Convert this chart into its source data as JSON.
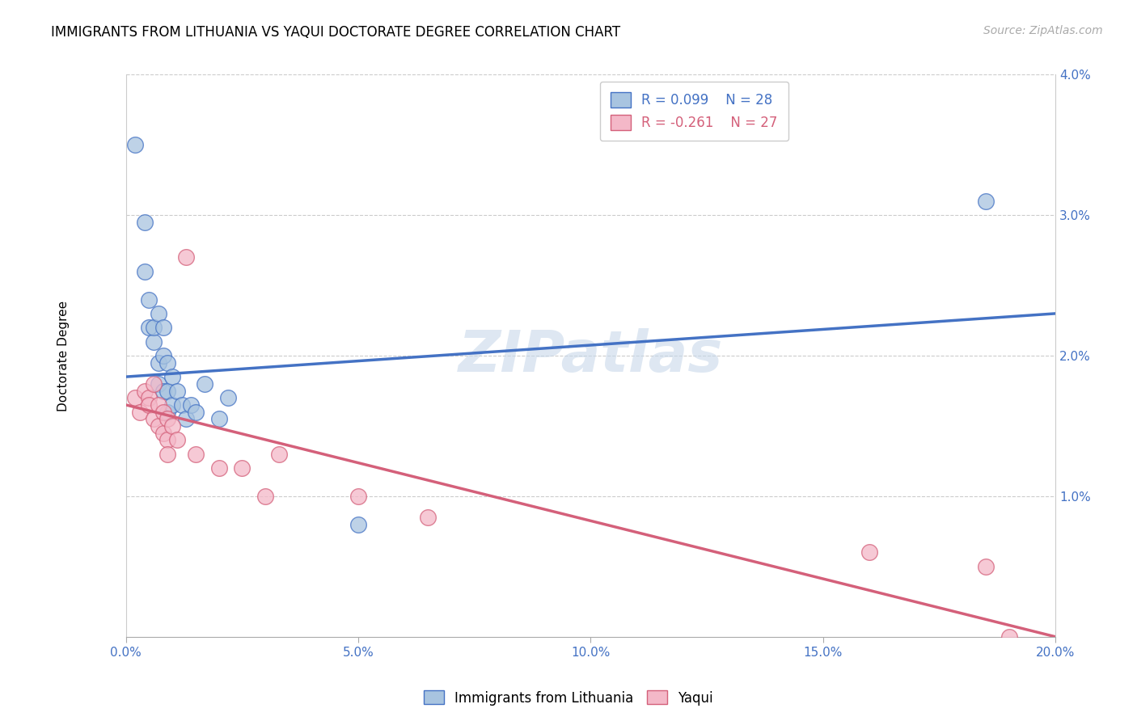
{
  "title": "IMMIGRANTS FROM LITHUANIA VS YAQUI DOCTORATE DEGREE CORRELATION CHART",
  "source_text": "Source: ZipAtlas.com",
  "ylabel": "Doctorate Degree",
  "xlim": [
    0.0,
    0.2
  ],
  "ylim": [
    0.0,
    0.04
  ],
  "xtick_labels": [
    "0.0%",
    "",
    "",
    "",
    "",
    "5.0%",
    "",
    "",
    "",
    "",
    "10.0%",
    "",
    "",
    "",
    "",
    "15.0%",
    "",
    "",
    "",
    "",
    "20.0%"
  ],
  "xtick_values": [
    0.0,
    0.01,
    0.02,
    0.03,
    0.04,
    0.05,
    0.06,
    0.07,
    0.08,
    0.09,
    0.1,
    0.11,
    0.12,
    0.13,
    0.14,
    0.15,
    0.16,
    0.17,
    0.18,
    0.19,
    0.2
  ],
  "xtick_labels_shown": [
    "0.0%",
    "5.0%",
    "10.0%",
    "15.0%",
    "20.0%"
  ],
  "xtick_values_shown": [
    0.0,
    0.05,
    0.1,
    0.15,
    0.2
  ],
  "ytick_labels": [
    "1.0%",
    "2.0%",
    "3.0%",
    "4.0%"
  ],
  "ytick_values": [
    0.01,
    0.02,
    0.03,
    0.04
  ],
  "blue_color": "#a8c4e0",
  "blue_line_color": "#4472c4",
  "pink_color": "#f4b8c8",
  "pink_line_color": "#d4607a",
  "legend_R1": "R = 0.099",
  "legend_N1": "N = 28",
  "legend_R2": "R = -0.261",
  "legend_N2": "N = 27",
  "label1": "Immigrants from Lithuania",
  "label2": "Yaqui",
  "watermark": "ZIPatlas",
  "blue_scatter_x": [
    0.002,
    0.004,
    0.004,
    0.005,
    0.005,
    0.006,
    0.006,
    0.007,
    0.007,
    0.007,
    0.008,
    0.008,
    0.008,
    0.009,
    0.009,
    0.009,
    0.01,
    0.01,
    0.011,
    0.012,
    0.013,
    0.014,
    0.015,
    0.017,
    0.02,
    0.022,
    0.05,
    0.185
  ],
  "blue_scatter_y": [
    0.035,
    0.0295,
    0.026,
    0.024,
    0.022,
    0.021,
    0.022,
    0.023,
    0.0195,
    0.018,
    0.022,
    0.02,
    0.0175,
    0.0195,
    0.0175,
    0.016,
    0.0185,
    0.0165,
    0.0175,
    0.0165,
    0.0155,
    0.0165,
    0.016,
    0.018,
    0.0155,
    0.017,
    0.008,
    0.031
  ],
  "pink_scatter_x": [
    0.002,
    0.003,
    0.004,
    0.005,
    0.005,
    0.006,
    0.006,
    0.007,
    0.007,
    0.008,
    0.008,
    0.009,
    0.009,
    0.009,
    0.01,
    0.011,
    0.013,
    0.015,
    0.02,
    0.025,
    0.03,
    0.033,
    0.05,
    0.065,
    0.16,
    0.185,
    0.19
  ],
  "pink_scatter_y": [
    0.017,
    0.016,
    0.0175,
    0.017,
    0.0165,
    0.018,
    0.0155,
    0.0165,
    0.015,
    0.016,
    0.0145,
    0.0155,
    0.014,
    0.013,
    0.015,
    0.014,
    0.027,
    0.013,
    0.012,
    0.012,
    0.01,
    0.013,
    0.01,
    0.0085,
    0.006,
    0.005,
    0.0
  ],
  "blue_line_y_start": 0.0185,
  "blue_line_y_end": 0.023,
  "pink_line_y_start": 0.0165,
  "pink_line_y_end": 0.0,
  "title_fontsize": 12,
  "axis_label_fontsize": 11,
  "tick_fontsize": 11,
  "legend_fontsize": 12,
  "source_fontsize": 10
}
